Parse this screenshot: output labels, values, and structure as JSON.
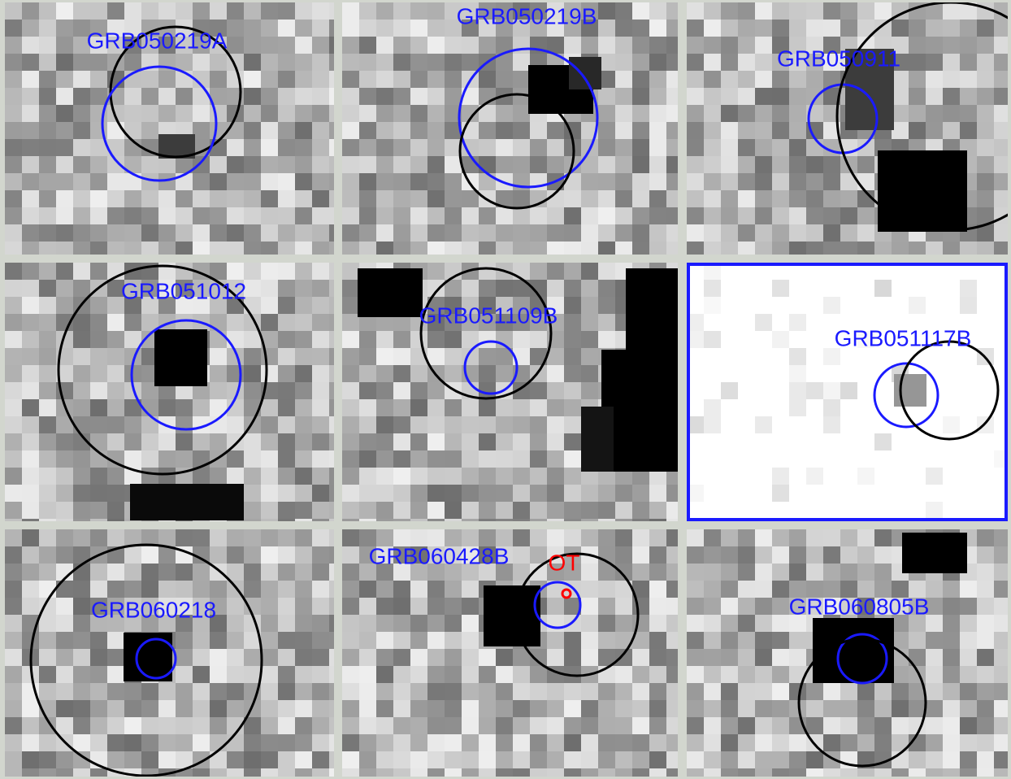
{
  "panels": [
    {
      "label": "GRB050219A"
    },
    {
      "label": "GRB050219B"
    },
    {
      "label": "GRB050911"
    },
    {
      "label": "GRB051012"
    },
    {
      "label": "GRB051109B"
    },
    {
      "label": "GRB051117B"
    },
    {
      "label": "GRB060218"
    },
    {
      "label": "GRB060428B",
      "annotation": "OT"
    },
    {
      "label": "GRB060805B"
    }
  ]
}
